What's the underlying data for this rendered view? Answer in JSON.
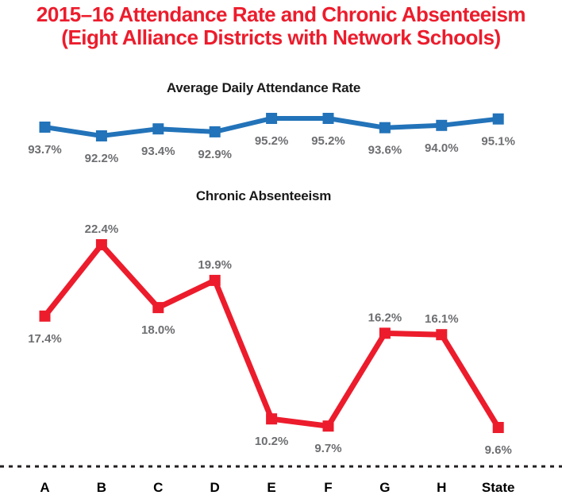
{
  "page": {
    "title_line1": "2015–16 Attendance Rate and Chronic Absenteeism",
    "title_line2": "(Eight Alliance Districts with Network Schools)",
    "title_color": "#EC1C2C"
  },
  "chart_data": {
    "type": "line",
    "categories": [
      "A",
      "B",
      "C",
      "D",
      "E",
      "F",
      "G",
      "H",
      "State"
    ],
    "series": [
      {
        "name": "Average Daily Attendance Rate",
        "color": "#2273B9",
        "values": [
          93.7,
          92.2,
          93.4,
          92.9,
          95.2,
          95.2,
          93.6,
          94.0,
          95.1
        ],
        "labels": [
          "93.7%",
          "92.2%",
          "93.4%",
          "92.9%",
          "95.2%",
          "95.2%",
          "93.6%",
          "94.0%",
          "95.1%"
        ],
        "label_side": [
          "below",
          "below",
          "below",
          "below",
          "below",
          "below",
          "below",
          "below",
          "below"
        ],
        "ylim": [
          91.5,
          96.0
        ]
      },
      {
        "name": "Chronic Absenteeism",
        "color": "#EC1C2C",
        "values": [
          17.4,
          22.4,
          18.0,
          19.9,
          10.2,
          9.7,
          16.2,
          16.1,
          9.6
        ],
        "labels": [
          "17.4%",
          "22.4%",
          "18.0%",
          "19.9%",
          "10.2%",
          "9.7%",
          "16.2%",
          "16.1%",
          "9.6%"
        ],
        "label_side": [
          "below",
          "above",
          "below",
          "above",
          "below",
          "below",
          "above",
          "above",
          "below"
        ],
        "ylim": [
          8.0,
          24.0
        ]
      }
    ],
    "value_label_color": "#6D6E71",
    "axis_label_color": "#000000",
    "axis_line_color": "#231F20",
    "axis_line_style": "dashed",
    "grid": false,
    "legend": "none",
    "marker": "square"
  }
}
